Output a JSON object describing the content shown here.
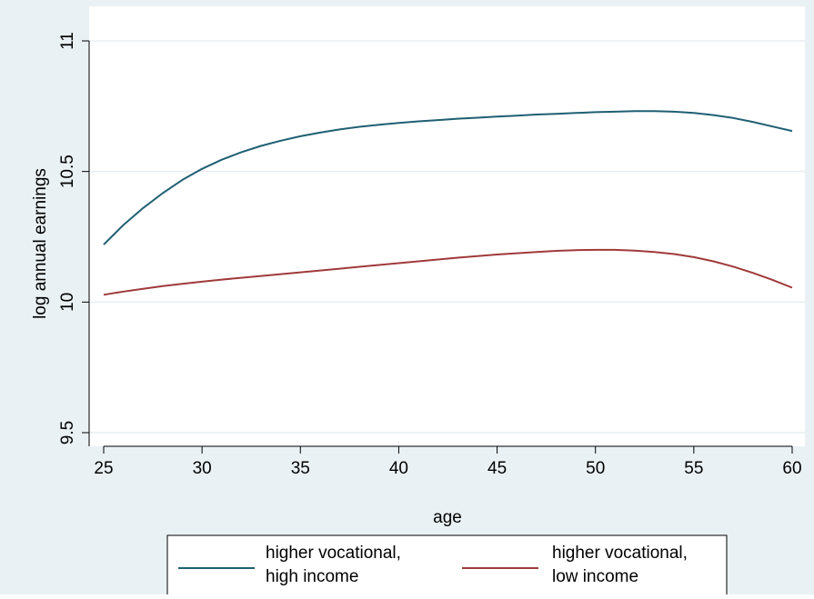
{
  "chart_data": {
    "type": "line",
    "xlabel": "age",
    "ylabel": "log annual earnings",
    "xlim": [
      25,
      60
    ],
    "ylim": [
      9.5,
      11
    ],
    "xticks": [
      "25",
      "30",
      "35",
      "40",
      "45",
      "50",
      "55",
      "60"
    ],
    "yticks": [
      "9.5",
      "10",
      "10.5",
      "11"
    ],
    "grid": true,
    "legend_position": "bottom",
    "background_color": "#eaf1f4",
    "plot_background_color": "#ffffff",
    "series": [
      {
        "name": "higher vocational, high income",
        "color": "#1f5f73",
        "x": [
          25,
          26,
          27,
          28,
          29,
          30,
          31,
          32,
          33,
          34,
          35,
          36,
          37,
          38,
          39,
          40,
          41,
          42,
          43,
          44,
          45,
          46,
          47,
          48,
          49,
          50,
          51,
          52,
          53,
          54,
          55,
          56,
          57,
          58,
          59,
          60
        ],
        "y": [
          10.22,
          10.295,
          10.36,
          10.417,
          10.468,
          10.51,
          10.545,
          10.574,
          10.598,
          10.618,
          10.635,
          10.649,
          10.661,
          10.671,
          10.679,
          10.686,
          10.692,
          10.697,
          10.702,
          10.706,
          10.71,
          10.714,
          10.718,
          10.721,
          10.724,
          10.727,
          10.729,
          10.731,
          10.731,
          10.729,
          10.724,
          10.716,
          10.705,
          10.69,
          10.672,
          10.655
        ]
      },
      {
        "name": "higher vocational, low income",
        "color": "#a03a3a",
        "x": [
          25,
          26,
          27,
          28,
          29,
          30,
          31,
          32,
          33,
          34,
          35,
          36,
          37,
          38,
          39,
          40,
          41,
          42,
          43,
          44,
          45,
          46,
          47,
          48,
          49,
          50,
          51,
          52,
          53,
          54,
          55,
          56,
          57,
          58,
          59,
          60
        ],
        "y": [
          10.028,
          10.04,
          10.051,
          10.061,
          10.07,
          10.078,
          10.086,
          10.093,
          10.1,
          10.107,
          10.114,
          10.121,
          10.128,
          10.135,
          10.142,
          10.149,
          10.156,
          10.163,
          10.17,
          10.176,
          10.182,
          10.187,
          10.192,
          10.196,
          10.199,
          10.2,
          10.2,
          10.197,
          10.192,
          10.184,
          10.172,
          10.156,
          10.136,
          10.112,
          10.085,
          10.055
        ]
      }
    ],
    "legend": [
      {
        "line1": "higher vocational,",
        "line2": "high income"
      },
      {
        "line1": "higher vocational,",
        "line2": "low income"
      }
    ]
  }
}
